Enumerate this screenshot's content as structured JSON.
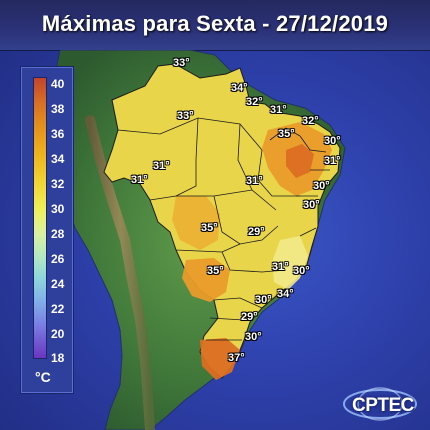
{
  "title": "Máximas para Sexta - 27/12/2019",
  "legend": {
    "ticks": [
      "40",
      "38",
      "36",
      "34",
      "32",
      "30",
      "28",
      "26",
      "24",
      "22",
      "20",
      "18"
    ],
    "unit": "°C"
  },
  "labels": {
    "l01": "33°",
    "l02": "34°",
    "l03": "32°",
    "l04": "31°",
    "l05": "33°",
    "l06": "32°",
    "l07": "35°",
    "l08": "30°",
    "l09": "31°",
    "l10": "31°",
    "l11": "31°",
    "l12": "30°",
    "l13": "31°",
    "l14": "30°",
    "l15": "35°",
    "l16": "29°",
    "l17": "35°",
    "l18": "31°",
    "l19": "30°",
    "l20": "30°",
    "l21": "34°",
    "l22": "29°",
    "l23": "30°",
    "l24": "37°"
  },
  "logo": {
    "text": "CPTEC"
  },
  "colors": {
    "ocean": "#2d3fa9",
    "land_green": "#3f7a3a",
    "temp_30": "#e8d54a",
    "temp_32": "#f0c030",
    "temp_35": "#ea9b2a",
    "temp_37": "#dc6e22"
  }
}
